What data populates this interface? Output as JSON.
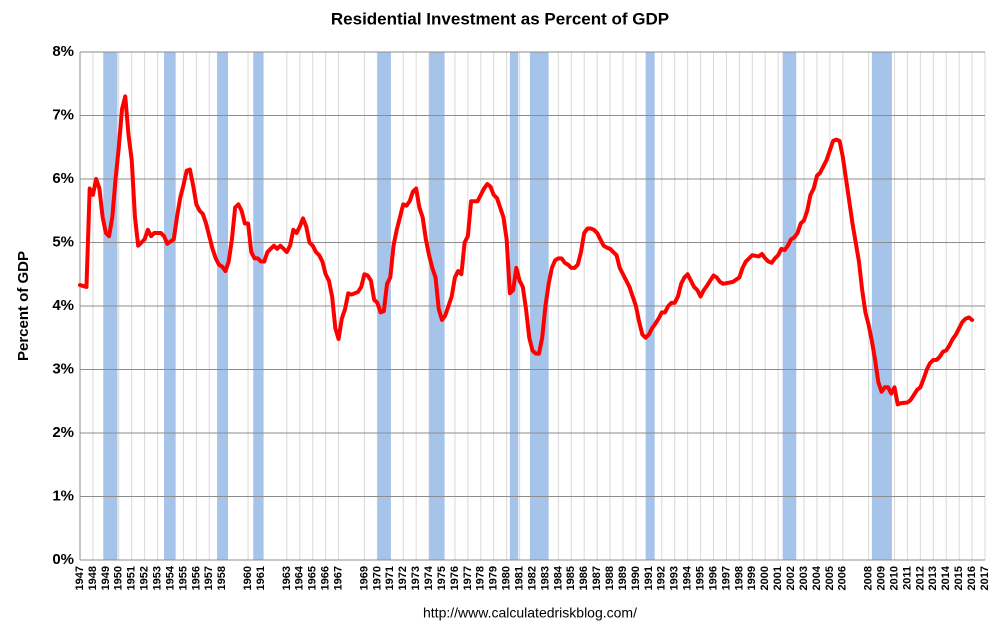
{
  "chart_data": {
    "type": "line",
    "title": "Residential Investment as Percent of GDP",
    "y_label": "Percent of GDP",
    "source": "http://www.calculatedriskblog.com/",
    "xlim": [
      1947,
      2017
    ],
    "xticks": [
      1947,
      1948,
      1949,
      1950,
      1951,
      1952,
      1953,
      1954,
      1955,
      1956,
      1957,
      1958,
      1960,
      1961,
      1963,
      1964,
      1965,
      1966,
      1967,
      1969,
      1970,
      1971,
      1972,
      1973,
      1974,
      1975,
      1976,
      1977,
      1978,
      1979,
      1980,
      1981,
      1982,
      1983,
      1984,
      1985,
      1986,
      1987,
      1988,
      1989,
      1990,
      1991,
      1992,
      1993,
      1994,
      1995,
      1996,
      1997,
      1998,
      1999,
      2000,
      2001,
      2002,
      2003,
      2004,
      2005,
      2006,
      2008,
      2009,
      2010,
      2011,
      2012,
      2013,
      2014,
      2015,
      2016,
      2017
    ],
    "ylim": [
      0,
      8
    ],
    "yticks": [
      {
        "value": 0,
        "label": "0%"
      },
      {
        "value": 1,
        "label": "1%"
      },
      {
        "value": 2,
        "label": "2%"
      },
      {
        "value": 3,
        "label": "3%"
      },
      {
        "value": 4,
        "label": "4%"
      },
      {
        "value": 5,
        "label": "5%"
      },
      {
        "value": 6,
        "label": "6%"
      },
      {
        "value": 7,
        "label": "7%"
      },
      {
        "value": 8,
        "label": "8%"
      }
    ],
    "grid": true,
    "recession_color": "#a6c4ea",
    "recessions": [
      [
        1948.8,
        1949.9
      ],
      [
        1953.5,
        1954.4
      ],
      [
        1957.6,
        1958.45
      ],
      [
        1960.4,
        1961.2
      ],
      [
        1970.0,
        1971.05
      ],
      [
        1974.0,
        1975.2
      ],
      [
        1980.25,
        1980.9
      ],
      [
        1981.8,
        1983.25
      ],
      [
        1990.75,
        1991.45
      ],
      [
        2001.35,
        2002.4
      ],
      [
        2008.25,
        2009.8
      ]
    ],
    "x": [
      1947.0,
      1947.5,
      1947.75,
      1948.0,
      1948.25,
      1948.5,
      1948.75,
      1949.0,
      1949.25,
      1949.5,
      1949.75,
      1950.0,
      1950.25,
      1950.5,
      1950.75,
      1951.0,
      1951.25,
      1951.5,
      1951.75,
      1952.0,
      1952.25,
      1952.5,
      1952.75,
      1953.25,
      1953.5,
      1953.75,
      1954.25,
      1954.5,
      1954.75,
      1955.0,
      1955.25,
      1955.5,
      1955.75,
      1956.0,
      1956.25,
      1956.5,
      1956.75,
      1957.0,
      1957.25,
      1957.5,
      1957.75,
      1958.0,
      1958.25,
      1958.5,
      1958.75,
      1959.0,
      1959.25,
      1959.5,
      1959.75,
      1960.0,
      1960.25,
      1960.5,
      1960.75,
      1961.0,
      1961.25,
      1961.5,
      1961.75,
      1962.0,
      1962.25,
      1962.5,
      1962.75,
      1963.0,
      1963.25,
      1963.5,
      1963.75,
      1964.0,
      1964.25,
      1964.5,
      1964.75,
      1965.0,
      1965.25,
      1965.5,
      1965.75,
      1966.0,
      1966.25,
      1966.5,
      1966.75,
      1967.0,
      1967.25,
      1967.5,
      1967.75,
      1968.0,
      1968.5,
      1968.75,
      1969.0,
      1969.25,
      1969.5,
      1969.75,
      1970.0,
      1970.25,
      1970.5,
      1970.75,
      1971.0,
      1971.25,
      1971.5,
      1971.75,
      1972.0,
      1972.25,
      1972.5,
      1972.75,
      1973.0,
      1973.25,
      1973.5,
      1973.75,
      1974.0,
      1974.25,
      1974.5,
      1974.75,
      1975.0,
      1975.25,
      1975.5,
      1975.75,
      1976.0,
      1976.25,
      1976.5,
      1976.75,
      1977.0,
      1977.25,
      1977.5,
      1977.75,
      1978.0,
      1978.25,
      1978.5,
      1978.75,
      1979.0,
      1979.25,
      1979.5,
      1979.75,
      1980.0,
      1980.25,
      1980.5,
      1980.75,
      1981.0,
      1981.25,
      1981.5,
      1981.75,
      1982.0,
      1982.25,
      1982.5,
      1982.75,
      1983.0,
      1983.25,
      1983.5,
      1983.75,
      1984.0,
      1984.25,
      1984.5,
      1984.75,
      1985.0,
      1985.25,
      1985.5,
      1985.75,
      1986.0,
      1986.25,
      1986.5,
      1986.75,
      1987.0,
      1987.25,
      1987.5,
      1987.75,
      1988.0,
      1988.25,
      1988.5,
      1988.75,
      1989.0,
      1989.25,
      1989.5,
      1989.75,
      1990.0,
      1990.25,
      1990.5,
      1990.75,
      1991.0,
      1991.25,
      1991.5,
      1991.75,
      1992.0,
      1992.25,
      1992.5,
      1992.75,
      1993.0,
      1993.25,
      1993.5,
      1993.75,
      1994.0,
      1994.25,
      1994.5,
      1994.75,
      1995.0,
      1995.25,
      1995.5,
      1995.75,
      1996.0,
      1996.25,
      1996.5,
      1996.75,
      1997.5,
      1998.0,
      1998.25,
      1998.5,
      1998.75,
      1999.0,
      1999.5,
      1999.75,
      2000.0,
      2000.25,
      2000.5,
      2000.75,
      2001.0,
      2001.25,
      2001.5,
      2001.75,
      2002.0,
      2002.25,
      2002.5,
      2002.75,
      2003.0,
      2003.25,
      2003.5,
      2003.75,
      2004.0,
      2004.25,
      2004.5,
      2004.75,
      2005.0,
      2005.25,
      2005.5,
      2005.75,
      2006.0,
      2006.25,
      2006.5,
      2006.75,
      2007.0,
      2007.25,
      2007.5,
      2007.75,
      2008.0,
      2008.25,
      2008.5,
      2008.75,
      2009.0,
      2009.25,
      2009.5,
      2009.75,
      2010.0,
      2010.25,
      2010.5,
      2011.0,
      2011.25,
      2011.5,
      2011.75,
      2012.0,
      2012.25,
      2012.5,
      2012.75,
      2013.0,
      2013.25,
      2013.5,
      2013.75,
      2014.0,
      2014.25,
      2014.5,
      2014.75,
      2015.0,
      2015.25,
      2015.5,
      2015.75,
      2016.0
    ],
    "series": [
      {
        "color": "#ff0000",
        "values": [
          4.33,
          4.3,
          5.85,
          5.75,
          6.0,
          5.85,
          5.4,
          5.15,
          5.1,
          5.4,
          6.0,
          6.5,
          7.1,
          7.3,
          6.7,
          6.3,
          5.4,
          4.95,
          5.0,
          5.05,
          5.2,
          5.1,
          5.15,
          5.15,
          5.1,
          4.98,
          5.05,
          5.4,
          5.7,
          5.9,
          6.13,
          6.15,
          5.9,
          5.6,
          5.5,
          5.45,
          5.3,
          5.1,
          4.9,
          4.75,
          4.65,
          4.62,
          4.55,
          4.7,
          5.05,
          5.55,
          5.6,
          5.5,
          5.3,
          5.3,
          4.85,
          4.75,
          4.75,
          4.7,
          4.7,
          4.85,
          4.9,
          4.95,
          4.9,
          4.95,
          4.9,
          4.85,
          4.95,
          5.2,
          5.15,
          5.25,
          5.38,
          5.25,
          5.0,
          4.95,
          4.85,
          4.8,
          4.7,
          4.5,
          4.4,
          4.15,
          3.65,
          3.48,
          3.8,
          3.95,
          4.2,
          4.18,
          4.22,
          4.3,
          4.5,
          4.48,
          4.4,
          4.1,
          4.05,
          3.9,
          3.92,
          4.35,
          4.45,
          4.95,
          5.2,
          5.4,
          5.6,
          5.58,
          5.65,
          5.8,
          5.85,
          5.55,
          5.4,
          5.05,
          4.8,
          4.6,
          4.45,
          3.95,
          3.78,
          3.85,
          4.0,
          4.15,
          4.45,
          4.55,
          4.5,
          5.0,
          5.1,
          5.65,
          5.65,
          5.65,
          5.75,
          5.85,
          5.92,
          5.88,
          5.75,
          5.7,
          5.55,
          5.4,
          5.05,
          4.2,
          4.25,
          4.6,
          4.4,
          4.3,
          3.95,
          3.5,
          3.3,
          3.25,
          3.25,
          3.5,
          4.0,
          4.35,
          4.6,
          4.72,
          4.75,
          4.75,
          4.68,
          4.65,
          4.6,
          4.6,
          4.65,
          4.85,
          5.15,
          5.22,
          5.22,
          5.2,
          5.15,
          5.05,
          4.95,
          4.92,
          4.9,
          4.85,
          4.8,
          4.6,
          4.5,
          4.4,
          4.3,
          4.15,
          4.0,
          3.75,
          3.55,
          3.5,
          3.55,
          3.65,
          3.72,
          3.8,
          3.9,
          3.9,
          4.0,
          4.05,
          4.05,
          4.15,
          4.35,
          4.45,
          4.5,
          4.4,
          4.3,
          4.25,
          4.15,
          4.25,
          4.32,
          4.4,
          4.48,
          4.45,
          4.38,
          4.35,
          4.38,
          4.45,
          4.6,
          4.7,
          4.75,
          4.8,
          4.78,
          4.82,
          4.75,
          4.7,
          4.68,
          4.75,
          4.8,
          4.9,
          4.88,
          4.95,
          5.05,
          5.08,
          5.15,
          5.3,
          5.35,
          5.5,
          5.75,
          5.85,
          6.05,
          6.1,
          6.2,
          6.3,
          6.45,
          6.6,
          6.62,
          6.6,
          6.35,
          6.0,
          5.65,
          5.3,
          5.0,
          4.7,
          4.25,
          3.9,
          3.7,
          3.45,
          3.15,
          2.8,
          2.65,
          2.72,
          2.72,
          2.62,
          2.72,
          2.45,
          2.47,
          2.48,
          2.52,
          2.6,
          2.68,
          2.72,
          2.85,
          3.0,
          3.1,
          3.15,
          3.15,
          3.2,
          3.28,
          3.3,
          3.38,
          3.48,
          3.55,
          3.65,
          3.75,
          3.8,
          3.82,
          3.78
        ]
      }
    ]
  }
}
